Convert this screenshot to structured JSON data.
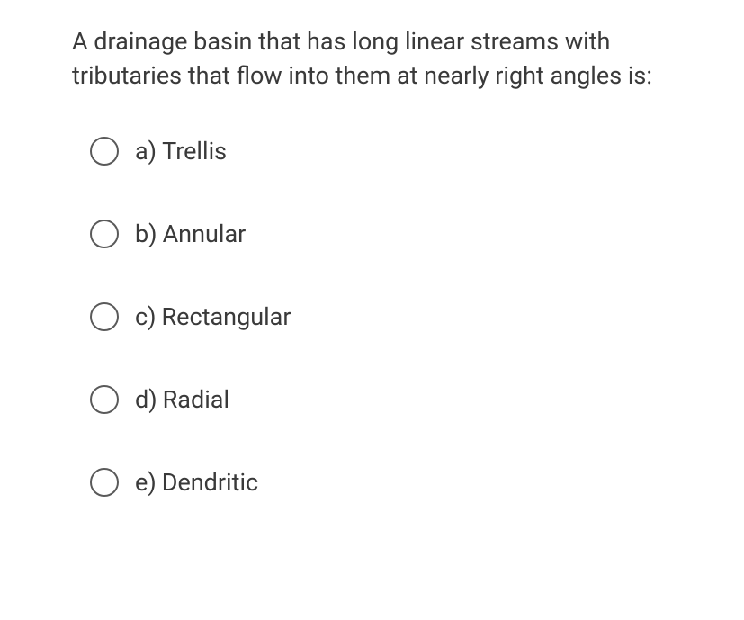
{
  "question": {
    "text": "A drainage basin that has long linear streams with tributaries that flow into them at nearly right angles is:"
  },
  "options": [
    {
      "letter": "a)",
      "label": "Trellis"
    },
    {
      "letter": "b)",
      "label": "Annular"
    },
    {
      "letter": "c)",
      "label": "Rectangular"
    },
    {
      "letter": "d)",
      "label": "Radial"
    },
    {
      "letter": "e)",
      "label": "Dendritic"
    }
  ],
  "colors": {
    "text": "#3a3a3a",
    "radio_border": "#5a5a5a",
    "background": "#ffffff"
  },
  "typography": {
    "question_fontsize": 27,
    "option_fontsize": 27
  }
}
